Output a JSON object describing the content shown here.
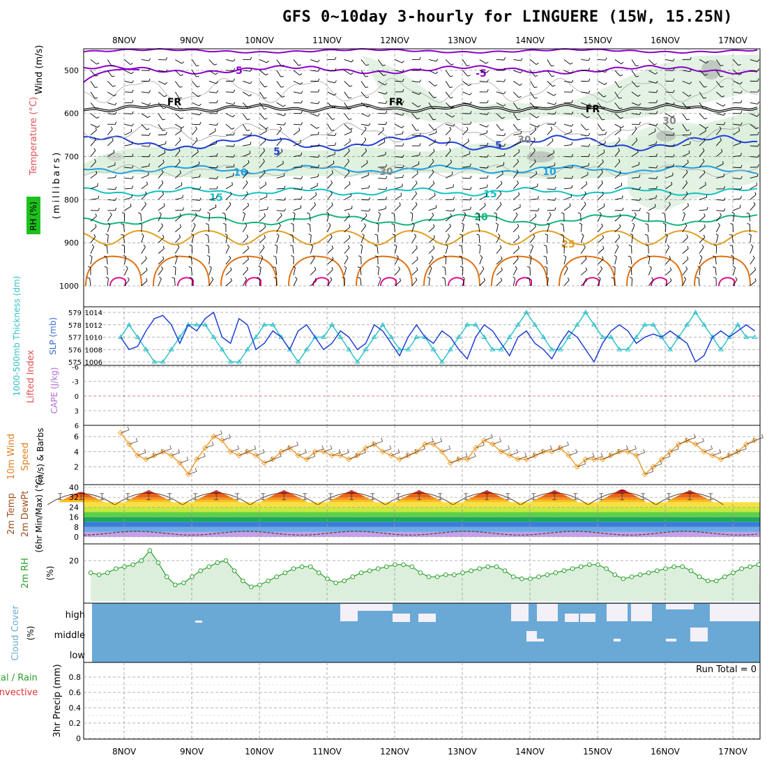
{
  "title": "GFS 0~10day 3-hourly for LINGUERE (15W, 15.25N)",
  "dates": [
    "8NOV",
    "9NOV",
    "10NOV",
    "11NOV",
    "12NOV",
    "13NOV",
    "14NOV",
    "15NOV",
    "16NOV",
    "17NOV"
  ],
  "colors": {
    "purple": "#8b00c9",
    "black": "#000000",
    "blue": "#1f3fd6",
    "lightblue": "#1f9fe0",
    "teal": "#13c2c2",
    "green": "#15b57a",
    "gold": "#e0a020",
    "orange": "#e07010",
    "magenta": "#e0108e",
    "rh_shade": "#dcefdc",
    "cloud": "#6aa9d6",
    "cloudgap": "#f4f0f8",
    "grid": "#9a9a9a",
    "wind_orange": "#f0a030",
    "slp_blue": "#1f3fd6",
    "thick_cyan": "#30c0c8",
    "rh2m": "#2aa02a"
  },
  "panel_upper": {
    "ylabels": [
      "500",
      "600",
      "700",
      "800",
      "900",
      "1000"
    ],
    "left_label_wind": "Wind (m/s)",
    "left_label_temp": "Temperature (°C)",
    "left_label_rh": "RH (%)",
    "left_label_mb": "(millibars)",
    "contour_labels": {
      "m5": "-5",
      "fr": "FR",
      "p5": "5",
      "p10": "10",
      "p15": "15",
      "p20": "20",
      "p25": "25",
      "rh30": "30"
    }
  },
  "panel_slp": {
    "left_ticks": [
      "579",
      "578",
      "577",
      "576",
      "575"
    ],
    "right_ticks": [
      "1014",
      "1012",
      "1010",
      "1008",
      "1006"
    ],
    "label_thick": "1000-500mb Thickness (dm)",
    "label_slp": "SLP (mb)"
  },
  "panel_cape": {
    "ticks": [
      "-6",
      "-3",
      "0",
      "3",
      "6"
    ],
    "label_li": "Lifted Index",
    "label_cape": "CAPE (J/kg)"
  },
  "panel_wind": {
    "ticks": [
      "6",
      "4",
      "2"
    ],
    "label1": "10m Wind",
    "label2": "Speed",
    "label3": "(m/s) & Barbs"
  },
  "panel_temp": {
    "ticks": [
      "40",
      "32",
      "24",
      "16",
      "8",
      "0"
    ],
    "label1": "2m Temp",
    "label2": "2m DewPt",
    "label3": "(6hr Min/Max) (°C)"
  },
  "panel_rh": {
    "ticks": [
      "20"
    ],
    "label1": "2m RH",
    "label2": "(%)"
  },
  "panel_cloud": {
    "levels": [
      "high",
      "middle",
      "low"
    ],
    "label1": "Cloud Cover",
    "label2": "(%)"
  },
  "panel_precip": {
    "ticks": [
      "0.8",
      "0.6",
      "0.4",
      "0.2",
      "0"
    ],
    "run_total": "Run Total = 0",
    "label_total": "Total / Rain",
    "label_conv": "Convective",
    "label_precip": "3hr Precip (mm)"
  },
  "chart_data": [
    {
      "type": "line",
      "title": "1000-500mb Thickness (dm) & SLP (mb)",
      "series": [
        {
          "name": "SLP (mb)",
          "values": [
            1010,
            1008,
            1008.5,
            1011,
            1013,
            1013.5,
            1012,
            1009,
            1012,
            1011,
            1013,
            1014,
            1010,
            1009,
            1013,
            1012,
            1008,
            1009,
            1011,
            1010,
            1008,
            1011,
            1012,
            1010,
            1008,
            1009,
            1011,
            1010,
            1008,
            1009,
            1012,
            1011,
            1009,
            1007,
            1010,
            1012,
            1010,
            1009,
            1011,
            1010,
            1008,
            1006.5,
            1010,
            1012,
            1011,
            1009,
            1007,
            1010,
            1011,
            1009,
            1008,
            1006.5,
            1009,
            1011,
            1010,
            1008,
            1006,
            1009,
            1011,
            1012,
            1011,
            1009,
            1010,
            1010.5,
            1010,
            1011,
            1010,
            1009,
            1006,
            1007,
            1010,
            1011,
            1010,
            1011,
            1012,
            1011,
            1010
          ]
        },
        {
          "name": "1000-500mb Thickness (dm)",
          "values": [
            577,
            578,
            577,
            576,
            575,
            575,
            576,
            577,
            578,
            578,
            578,
            577,
            576,
            575,
            575,
            576,
            577,
            578,
            578,
            577,
            576,
            575,
            576,
            577,
            577,
            578,
            577,
            576,
            575,
            576,
            577,
            578,
            577,
            576,
            576,
            577,
            577,
            576,
            575,
            576,
            577,
            578,
            578,
            577,
            576,
            576,
            577,
            578,
            579,
            578,
            577,
            576,
            576,
            577,
            578,
            579,
            578,
            577,
            577,
            576,
            576,
            577,
            578,
            578,
            577,
            576,
            577,
            578,
            579,
            578,
            577,
            576,
            577,
            578,
            577,
            577,
            577
          ]
        }
      ]
    },
    {
      "type": "line",
      "title": "10m Wind Speed (m/s)",
      "ylim": [
        0,
        7
      ],
      "series": [
        {
          "name": "10m Wind Speed",
          "values": [
            6.5,
            5,
            3.5,
            3,
            3.5,
            4,
            3.5,
            2.5,
            1,
            3,
            4.5,
            6,
            5.5,
            4,
            3.5,
            4,
            3.5,
            2.5,
            3,
            4,
            4.5,
            3.5,
            3,
            4,
            4,
            3.5,
            3.5,
            3,
            3.5,
            4.5,
            5,
            4,
            3.5,
            3,
            3.5,
            4,
            5,
            5,
            4,
            2.5,
            3,
            3,
            4.5,
            5.5,
            5,
            4,
            3.5,
            3,
            3,
            3.5,
            4,
            4,
            4.5,
            3.5,
            2,
            3,
            3,
            3,
            3.5,
            4,
            4,
            3.5,
            1,
            2,
            3,
            4,
            5,
            5.5,
            5,
            4,
            3.5,
            3,
            3.5,
            4,
            5,
            5.5,
            4.5,
            4,
            3.5,
            2.5,
            1.2,
            3.5,
            4,
            4.5,
            5,
            6,
            5,
            4,
            3.5,
            3.5,
            4,
            4.5,
            4.5,
            4.3
          ]
        }
      ]
    },
    {
      "type": "area",
      "title": "2m Temp (°C)",
      "ylim": [
        0,
        40
      ],
      "series": [
        {
          "name": "2m Temp daily max",
          "values": [
            37,
            38,
            38,
            38,
            38,
            38,
            38,
            38,
            39,
            38
          ]
        },
        {
          "name": "2m Temp daily min",
          "values": [
            24,
            24,
            24,
            24,
            24,
            24,
            24,
            24,
            24,
            24
          ]
        }
      ]
    },
    {
      "type": "line",
      "title": "2m RH (%)",
      "series": [
        {
          "name": "2m RH",
          "values": [
            14,
            13,
            14,
            16,
            17,
            18,
            20,
            25,
            19,
            12,
            8,
            9,
            12,
            15,
            17,
            19,
            20,
            15,
            10,
            7,
            8,
            10,
            12,
            14,
            16,
            17,
            17,
            14,
            11,
            9,
            10,
            12,
            14,
            15,
            16,
            17,
            18,
            18,
            17,
            14,
            12,
            12,
            13,
            13,
            14,
            15,
            16,
            17,
            17,
            15,
            12,
            11,
            11,
            12,
            13,
            14,
            15,
            16,
            17,
            18,
            18,
            16,
            13,
            11,
            12,
            13,
            14,
            15,
            16,
            17,
            17,
            15,
            12,
            10,
            10,
            12,
            14,
            16,
            17,
            18,
            17,
            15
          ]
        }
      ]
    }
  ]
}
